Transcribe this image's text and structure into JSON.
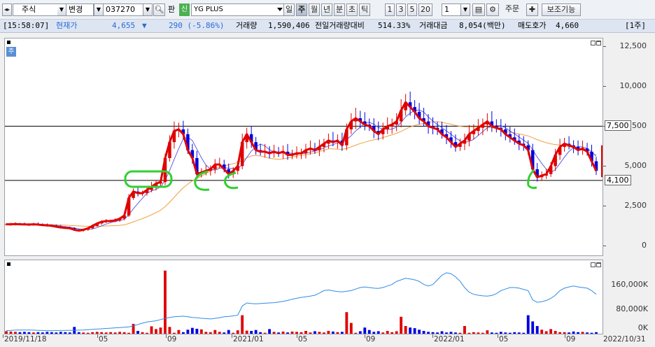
{
  "toolbar": {
    "market_type": "주식",
    "change_label": "변경",
    "stock_code": "037270",
    "pan_label": "판",
    "shin_badge": "신",
    "stock_name": "YG PLUS",
    "period_buttons": [
      "일",
      "주",
      "월",
      "년",
      "분",
      "초",
      "틱"
    ],
    "active_period": "주",
    "interval_buttons": [
      "1",
      "3",
      "5",
      "20"
    ],
    "interval_value": "1",
    "order_label": "주문",
    "indicator_label": "보조기능"
  },
  "info_bar": {
    "time": "[15:58:07]",
    "price_label": "현재가",
    "price": "4,655",
    "change_arrow": "▼",
    "change": "290 (-5.86%)",
    "volume_label": "거래량",
    "volume": "1,590,406",
    "prev_volume_ratio_label": "전일거래량대비",
    "prev_volume_ratio": "514.33%",
    "amount_label": "거래대금",
    "amount": "8,054(백만)",
    "ask_label": "매도호가",
    "ask": "4,660",
    "unit": "[1주]"
  },
  "chart_data": [
    {
      "type": "candlestick",
      "y_ticks": [
        "12,500",
        "10,000",
        "7,500",
        "5,000",
        "2,500",
        "0"
      ],
      "ylim": [
        -600,
        13000
      ],
      "hlines": [
        7500,
        4100
      ],
      "hline_labels": [
        "7,500",
        "4,100"
      ],
      "x_ticks": [
        "2019/11/18",
        "05",
        "09",
        "2021/01",
        "05",
        "09",
        "2022/01",
        "05",
        "09",
        "2022/10/31"
      ],
      "series": [
        {
          "name": "close",
          "color": "#ff0000",
          "values": [
            1350,
            1350,
            1360,
            1350,
            1340,
            1330,
            1350,
            1330,
            1300,
            1280,
            1250,
            1200,
            1150,
            1120,
            1100,
            1000,
            950,
            1000,
            1100,
            1250,
            1400,
            1500,
            1550,
            1550,
            1600,
            1700,
            1900,
            3000,
            3400,
            3300,
            3300,
            3500,
            3700,
            3900,
            4000,
            5500,
            6500,
            7200,
            7300,
            7000,
            6000,
            5500,
            4500,
            4600,
            4700,
            4800,
            5100,
            5100,
            4800,
            4500,
            4700,
            5000,
            6500,
            7000,
            6500,
            6000,
            5900,
            5900,
            5800,
            5900,
            5800,
            5900,
            5700,
            5700,
            5800,
            5800,
            6000,
            6100,
            6000,
            6200,
            6400,
            6600,
            6500,
            6600,
            6300,
            7300,
            7800,
            8000,
            7800,
            7600,
            7500,
            7200,
            7000,
            7300,
            7500,
            7600,
            7800,
            8500,
            9000,
            8700,
            8400,
            8000,
            7800,
            7500,
            7400,
            7300,
            7000,
            6800,
            6500,
            6200,
            6400,
            6600,
            7000,
            7200,
            7400,
            7600,
            7800,
            7500,
            7400,
            7300,
            7000,
            6800,
            6600,
            6400,
            6300,
            6000,
            4800,
            4300,
            4400,
            4500,
            5000,
            5700,
            6200,
            6400,
            6300,
            6200,
            6000,
            6100,
            5900,
            5300,
            4700
          ]
        }
      ]
    },
    {
      "type": "bar",
      "y_ticks": [
        "160,000K",
        "80,000K",
        "0K"
      ],
      "ylim": [
        0,
        225000
      ],
      "series": [
        {
          "name": "volume",
          "values": [
            8000,
            7000,
            6000,
            5000,
            6000,
            5000,
            4000,
            5000,
            4000,
            6000,
            5000,
            4000,
            6000,
            5000,
            4000,
            22000,
            5000,
            4000,
            3000,
            5000,
            6000,
            5000,
            4000,
            5000,
            4000,
            6000,
            5000,
            3000,
            32000,
            9000,
            5000,
            3000,
            24000,
            15000,
            20000,
            205000,
            22000,
            3000,
            12000,
            5000,
            13000,
            19000,
            16000,
            14000,
            6000,
            5000,
            12000,
            6000,
            4000,
            12000,
            3000,
            11000,
            60000,
            10000,
            9000,
            12000,
            5000,
            3000,
            15000,
            6000,
            4000,
            7000,
            4000,
            7000,
            6000,
            5000,
            9000,
            4000,
            8000,
            6000,
            4000,
            9000,
            7000,
            5000,
            6000,
            70000,
            35000,
            3000,
            8000,
            20000,
            12000,
            6000,
            8000,
            4000,
            9000,
            5000,
            8000,
            55000,
            25000,
            20000,
            18000,
            13000,
            9000,
            6000,
            5000,
            4000,
            8000,
            4000,
            6000,
            4000,
            3000,
            25000,
            3000,
            5000,
            4000,
            3000,
            11000,
            4000,
            3000,
            6000,
            4000,
            3000,
            5000,
            4000,
            3000,
            60000,
            40000,
            25000,
            13000,
            8000,
            15000,
            9000,
            5000,
            5000,
            4000,
            7000,
            5000,
            6000,
            4000,
            3000,
            5000
          ]
        },
        {
          "name": "ma",
          "color": "#2f8ce6",
          "values": [
            10000,
            11000,
            11500,
            12000,
            12000,
            11800,
            11500,
            11000,
            10500,
            10000,
            10000,
            10200,
            10500,
            10800,
            11000,
            11200,
            11500,
            12000,
            13000,
            14000,
            15000,
            16000,
            17000,
            18000,
            19000,
            20000,
            21000,
            22000,
            25000,
            30000,
            34000,
            38000,
            40000,
            42000,
            46000,
            50000,
            53000,
            55000,
            56000,
            57000,
            55000,
            53000,
            52000,
            50000,
            49000,
            48000,
            50000,
            52000,
            55000,
            56000,
            58000,
            60000,
            90000,
            100000,
            98000,
            97000,
            98000,
            99000,
            100000,
            101000,
            103000,
            105000,
            108000,
            112000,
            115000,
            118000,
            120000,
            122000,
            125000,
            132000,
            140000,
            142000,
            139000,
            137000,
            136000,
            138000,
            140000,
            145000,
            150000,
            152000,
            150000,
            148000,
            147000,
            150000,
            155000,
            160000,
            170000,
            175000,
            180000,
            178000,
            175000,
            170000,
            160000,
            155000,
            160000,
            175000,
            190000,
            198000,
            195000,
            185000,
            170000,
            150000,
            135000,
            128000,
            125000,
            123000,
            122000,
            124000,
            130000,
            140000,
            145000,
            150000,
            150000,
            148000,
            144000,
            140000,
            110000,
            102000,
            104000,
            108000,
            115000,
            125000,
            140000,
            148000,
            152000,
            155000,
            152000,
            150000,
            148000,
            140000,
            128000
          ]
        }
      ]
    }
  ]
}
